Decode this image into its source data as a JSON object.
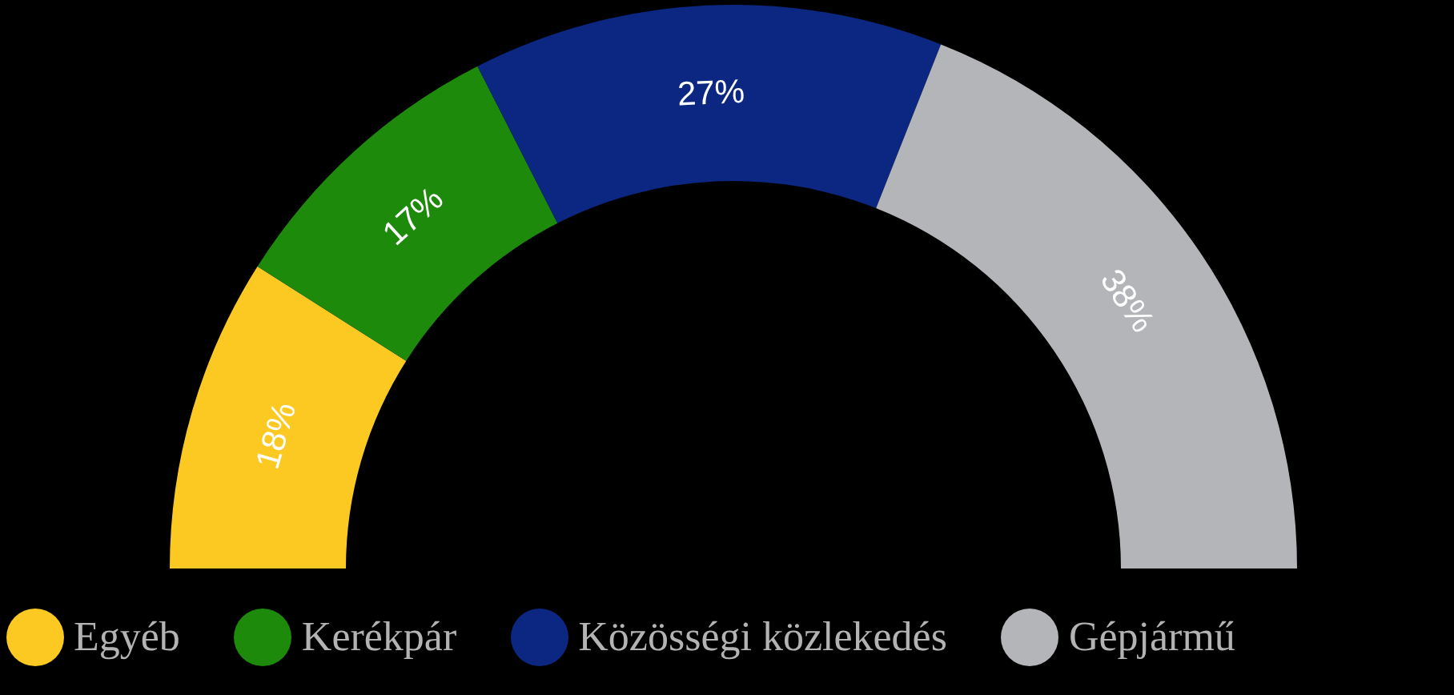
{
  "chart_data": {
    "type": "donut",
    "categories": [
      "Egyéb",
      "Kerékpár",
      "Közösségi közlekedés",
      "Gépjármű"
    ],
    "values": [
      18,
      17,
      27,
      38
    ],
    "colors": [
      "#fcc923",
      "#1d8a0c",
      "#0b2782",
      "#b4b5b8"
    ],
    "value_labels": [
      "18%",
      "17%",
      "27%",
      "38%"
    ],
    "legend": "bottom"
  }
}
